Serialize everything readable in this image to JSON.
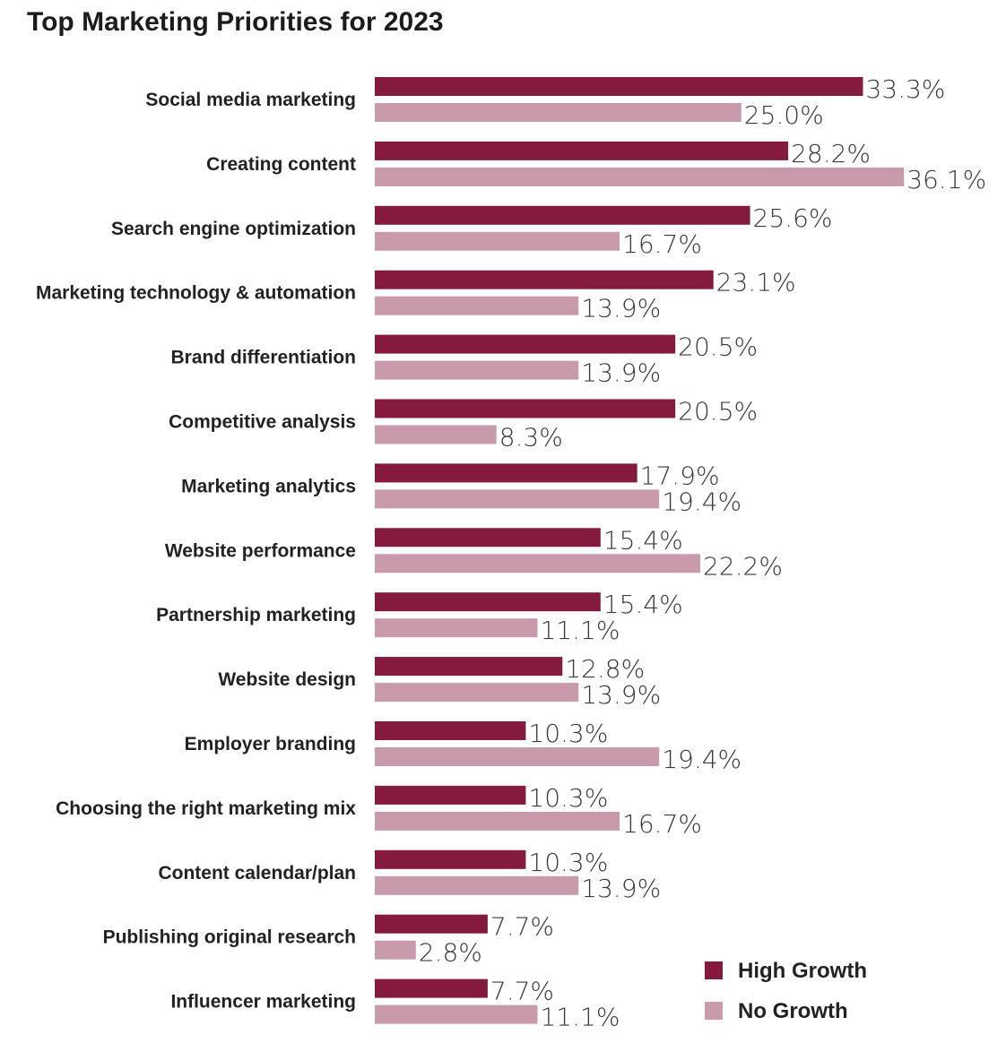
{
  "chart_data": {
    "type": "bar",
    "orientation": "horizontal",
    "title": "Top Marketing Priorities for 2023",
    "categories": [
      "Social media marketing",
      "Creating content",
      "Search engine optimization",
      "Marketing technology & automation",
      "Brand differentiation",
      "Competitive analysis",
      "Marketing analytics",
      "Website performance",
      "Partnership marketing",
      "Website design",
      "Employer branding",
      "Choosing the right marketing mix",
      "Content calendar/plan",
      "Publishing original research",
      "Influencer marketing"
    ],
    "series": [
      {
        "name": "High Growth",
        "color": "#841a3e",
        "values": [
          33.3,
          28.2,
          25.6,
          23.1,
          20.5,
          20.5,
          17.9,
          15.4,
          15.4,
          12.8,
          10.3,
          10.3,
          10.3,
          7.7,
          7.7
        ],
        "labels": [
          "33.3%",
          "28.2%",
          "25.6%",
          "23.1%",
          "20.5%",
          "20.5%",
          "17.9%",
          "15.4%",
          "15.4%",
          "12.8%",
          "10.3%",
          "10.3%",
          "10.3%",
          "7.7%",
          "7.7%"
        ]
      },
      {
        "name": "No Growth",
        "color": "#c99aac",
        "values": [
          25.0,
          36.1,
          16.7,
          13.9,
          13.9,
          8.3,
          19.4,
          22.2,
          11.1,
          13.9,
          19.4,
          16.7,
          13.9,
          2.8,
          11.1
        ],
        "labels": [
          "25.0%",
          "36.1%",
          "16.7%",
          "13.9%",
          "13.9%",
          "8.3%",
          "19.4%",
          "22.2%",
          "11.1%",
          "13.9%",
          "19.4%",
          "16.7%",
          "13.9%",
          "2.8%",
          "11.1%"
        ]
      }
    ],
    "unit": "%",
    "legend_position": "bottom-right",
    "grid": false,
    "xlim": [
      0,
      40
    ]
  }
}
